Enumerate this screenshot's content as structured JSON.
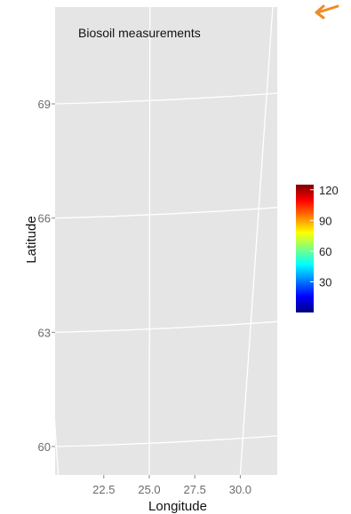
{
  "chart_data": {
    "type": "heatmap",
    "title": "Biosoil measurements",
    "xlabel": "Longitude",
    "ylabel": "Latitude",
    "x_ticks": [
      22.5,
      25.0,
      27.5,
      30.0
    ],
    "x_tick_labels": [
      "22.5",
      "25.0",
      "27.5",
      "30.0"
    ],
    "y_ticks": [
      60,
      63,
      66,
      69
    ],
    "y_tick_labels": [
      "60",
      "63",
      "66",
      "69"
    ],
    "xlim": [
      19.9,
      32.0
    ],
    "ylim": [
      59.3,
      71.4
    ],
    "grid": true,
    "background": "#e5e5e5",
    "legend": {
      "position": "right",
      "min": 0,
      "max": 125,
      "ticks": [
        30,
        60,
        90,
        120
      ],
      "tick_labels": [
        "30",
        "60",
        "90",
        "120"
      ],
      "colormap": [
        "#00007f",
        "#0000ff",
        "#007fff",
        "#00ffff",
        "#7fff7f",
        "#ffff00",
        "#ff7f00",
        "#ff0000",
        "#7f0000"
      ]
    },
    "annotation_arrow_color": "#f08a24",
    "points": []
  }
}
